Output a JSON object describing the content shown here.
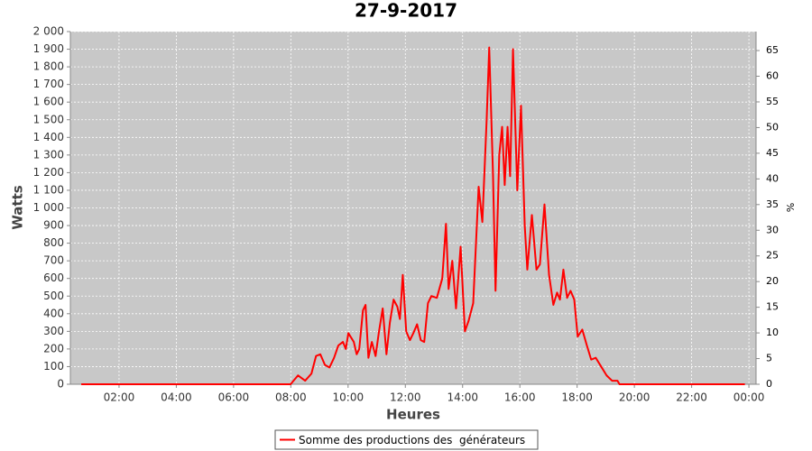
{
  "chart_data": {
    "type": "line",
    "title": "27-9-2017",
    "x_label": "Heures",
    "y_label": "Watts",
    "y2_label": "%",
    "x": [
      0.68,
      7.99,
      8.25,
      8.5,
      8.72,
      8.88,
      9.03,
      9.19,
      9.35,
      9.51,
      9.66,
      9.82,
      9.92,
      10.01,
      10.2,
      10.3,
      10.39,
      10.52,
      10.61,
      10.71,
      10.83,
      10.96,
      11.08,
      11.21,
      11.34,
      11.46,
      11.59,
      11.72,
      11.81,
      11.91,
      12.03,
      12.16,
      12.28,
      12.41,
      12.54,
      12.66,
      12.79,
      12.91,
      13.1,
      13.29,
      13.42,
      13.51,
      13.64,
      13.77,
      13.93,
      14.08,
      14.21,
      14.37,
      14.56,
      14.69,
      14.84,
      14.93,
      15.06,
      15.15,
      15.28,
      15.38,
      15.47,
      15.57,
      15.66,
      15.76,
      15.91,
      16.04,
      16.17,
      16.26,
      16.42,
      16.58,
      16.7,
      16.86,
      17.02,
      17.17,
      17.3,
      17.4,
      17.52,
      17.65,
      17.77,
      17.9,
      18.02,
      18.18,
      18.34,
      18.49,
      18.65,
      18.84,
      19.03,
      19.22,
      19.41,
      19.48,
      23.86
    ],
    "series": [
      {
        "name": "Somme des productions des  générateurs",
        "color": "#ff0000",
        "values": [
          0,
          0,
          50,
          20,
          60,
          160,
          170,
          110,
          95,
          150,
          220,
          240,
          200,
          290,
          240,
          170,
          200,
          420,
          450,
          150,
          240,
          160,
          300,
          430,
          170,
          350,
          480,
          440,
          370,
          620,
          300,
          250,
          290,
          340,
          250,
          240,
          460,
          500,
          490,
          600,
          910,
          540,
          700,
          430,
          780,
          300,
          360,
          460,
          1120,
          920,
          1500,
          1910,
          1200,
          530,
          1300,
          1460,
          1130,
          1460,
          1180,
          1900,
          1100,
          1580,
          900,
          650,
          960,
          650,
          680,
          1020,
          620,
          450,
          520,
          480,
          650,
          490,
          530,
          480,
          270,
          310,
          220,
          140,
          150,
          100,
          50,
          20,
          20,
          0,
          0
        ]
      }
    ],
    "xlim": [
      0.3,
      24.25
    ],
    "xticks": [
      {
        "value": 2,
        "label": "02:00"
      },
      {
        "value": 4,
        "label": "04:00"
      },
      {
        "value": 6,
        "label": "06:00"
      },
      {
        "value": 8,
        "label": "08:00"
      },
      {
        "value": 10,
        "label": "10:00"
      },
      {
        "value": 12,
        "label": "12:00"
      },
      {
        "value": 14,
        "label": "14:00"
      },
      {
        "value": 16,
        "label": "16:00"
      },
      {
        "value": 18,
        "label": "18:00"
      },
      {
        "value": 20,
        "label": "20:00"
      },
      {
        "value": 22,
        "label": "22:00"
      },
      {
        "value": 24,
        "label": "00:00"
      }
    ],
    "ylim": [
      0,
      2000
    ],
    "yticks": [
      0,
      100,
      200,
      300,
      400,
      500,
      600,
      700,
      800,
      900,
      {
        "value": 1000,
        "label": "1 000"
      },
      {
        "value": 1100,
        "label": "1 100"
      },
      {
        "value": 1200,
        "label": "1 200"
      },
      {
        "value": 1300,
        "label": "1 300"
      },
      {
        "value": 1400,
        "label": "1 400"
      },
      {
        "value": 1500,
        "label": "1 500"
      },
      {
        "value": 1600,
        "label": "1 600"
      },
      {
        "value": 1700,
        "label": "1 700"
      },
      {
        "value": 1800,
        "label": "1 800"
      },
      {
        "value": 1900,
        "label": "1 900"
      },
      {
        "value": 2000,
        "label": "2 000"
      }
    ],
    "y2lim": [
      0,
      68.7
    ],
    "y2ticks": [
      0,
      5,
      10,
      15,
      20,
      25,
      30,
      35,
      40,
      45,
      50,
      55,
      60,
      65
    ],
    "grid": true,
    "legend": "bottom"
  }
}
